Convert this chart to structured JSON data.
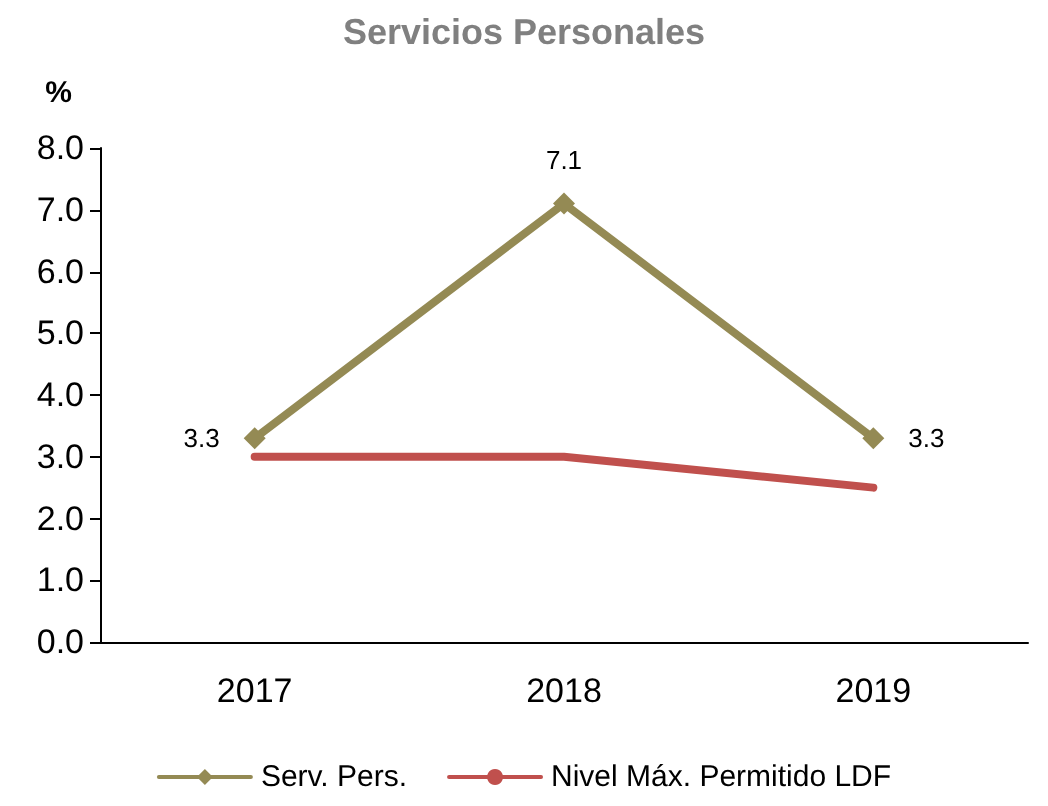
{
  "chart_data": {
    "type": "line",
    "title": "Servicios Personales",
    "ylabel": "%",
    "categories": [
      "2017",
      "2018",
      "2019"
    ],
    "series": [
      {
        "name": "Serv. Pers.",
        "color": "#948a54",
        "values": [
          3.3,
          7.1,
          3.3
        ],
        "marker": "diamond",
        "value_labels": [
          "3.3",
          "7.1",
          "3.3"
        ]
      },
      {
        "name": "Nivel Máx. Permitido LDF",
        "color": "#c0504d",
        "values": [
          3.0,
          3.0,
          2.5
        ],
        "marker": "none"
      }
    ],
    "ylim": [
      0,
      8
    ],
    "yticks": [
      {
        "value": 0,
        "label": "0.0"
      },
      {
        "value": 1,
        "label": "1.0"
      },
      {
        "value": 2,
        "label": "2.0"
      },
      {
        "value": 3,
        "label": "3.0"
      },
      {
        "value": 4,
        "label": "4.0"
      },
      {
        "value": 5,
        "label": "5.0"
      },
      {
        "value": 6,
        "label": "6.0"
      },
      {
        "value": 7,
        "label": "7.0"
      },
      {
        "value": 8,
        "label": "8.0"
      }
    ],
    "grid": false,
    "legend": "bottom",
    "line_style": "solid"
  }
}
